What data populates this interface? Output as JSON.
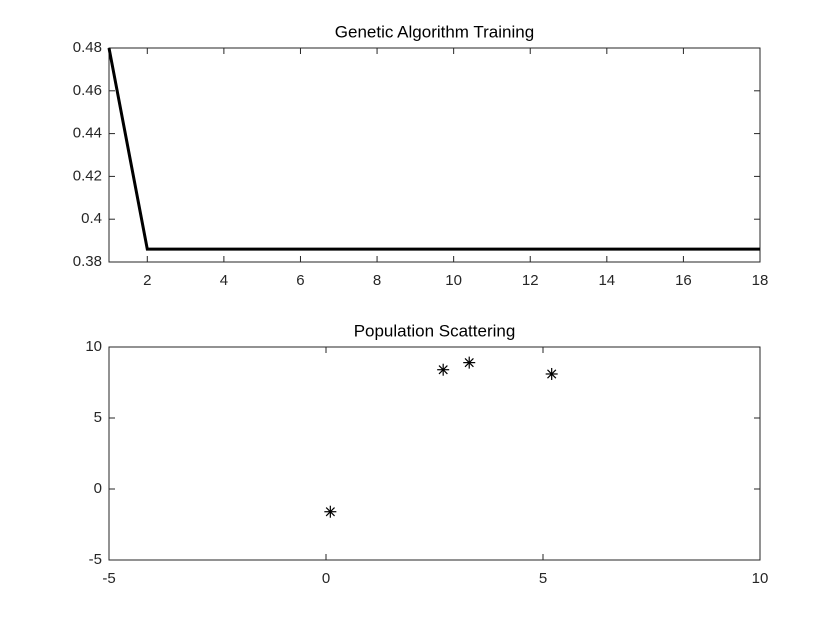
{
  "chart_data": [
    {
      "type": "line",
      "title": "Genetic Algorithm Training",
      "x": [
        1,
        2,
        3,
        4,
        5,
        6,
        7,
        8,
        9,
        10,
        11,
        12,
        13,
        14,
        15,
        16,
        17,
        18
      ],
      "values": [
        0.48,
        0.386,
        0.386,
        0.386,
        0.386,
        0.386,
        0.386,
        0.386,
        0.386,
        0.386,
        0.386,
        0.386,
        0.386,
        0.386,
        0.386,
        0.386,
        0.386,
        0.386
      ],
      "color": "#000000",
      "xlim": [
        1,
        18
      ],
      "xticks": [
        2,
        4,
        6,
        8,
        10,
        12,
        14,
        16,
        18
      ],
      "ylim": [
        0.38,
        0.48
      ],
      "yticks": [
        0.38,
        0.4,
        0.42,
        0.44,
        0.46,
        0.48
      ],
      "grid": false
    },
    {
      "type": "scatter",
      "title": "Population Scattering",
      "x": [
        0.1,
        2.7,
        3.3,
        5.2
      ],
      "values": [
        -1.6,
        8.4,
        8.9,
        8.1
      ],
      "color": "#000000",
      "xlim": [
        -5,
        10
      ],
      "xticks": [
        -5,
        0,
        5,
        10
      ],
      "ylim": [
        -5,
        10
      ],
      "yticks": [
        -5,
        0,
        5,
        10
      ],
      "grid": false
    }
  ]
}
